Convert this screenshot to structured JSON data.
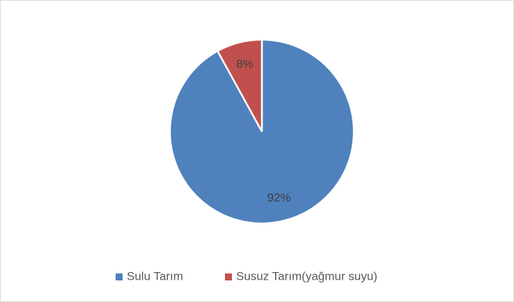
{
  "chart_data": {
    "type": "pie",
    "categories": [
      "Sulu Tarım",
      "Susuz Tarım(yağmur suyu)"
    ],
    "values": [
      92,
      8
    ],
    "value_labels": [
      "92%",
      "8%"
    ],
    "colors": [
      "#4f81bd",
      "#c0504d"
    ],
    "legend": "bottom"
  }
}
